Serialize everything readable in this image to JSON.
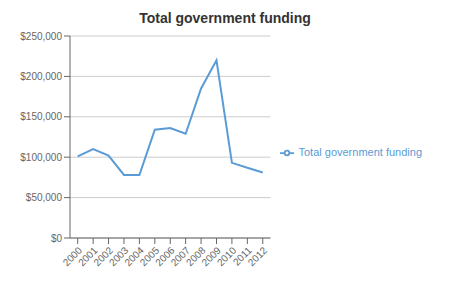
{
  "chart_data": {
    "type": "line",
    "title": "Total government funding",
    "x": [
      2000,
      2001,
      2002,
      2003,
      2004,
      2005,
      2006,
      2007,
      2008,
      2009,
      2010,
      2011,
      2012
    ],
    "series": [
      {
        "name": "Total government funding",
        "color": "#5b9bd5",
        "values": [
          101000,
          110000,
          102000,
          78000,
          78000,
          134000,
          136000,
          129000,
          185000,
          220000,
          93000,
          87000,
          81000
        ]
      }
    ],
    "xlim": [
      1999.5,
      2012.5
    ],
    "xticks": [
      2000,
      2001,
      2002,
      2003,
      2004,
      2005,
      2006,
      2007,
      2008,
      2009,
      2010,
      2011,
      2012
    ],
    "ylim": [
      0,
      250000
    ],
    "yticks": [
      {
        "value": 0,
        "label": "$0"
      },
      {
        "value": 50000,
        "label": "$50,000"
      },
      {
        "value": 100000,
        "label": "$100,000"
      },
      {
        "value": 150000,
        "label": "$150,000"
      },
      {
        "value": 200000,
        "label": "$200,000"
      },
      {
        "value": 250000,
        "label": "$250,000"
      }
    ],
    "grid": "y",
    "legend": "right"
  }
}
